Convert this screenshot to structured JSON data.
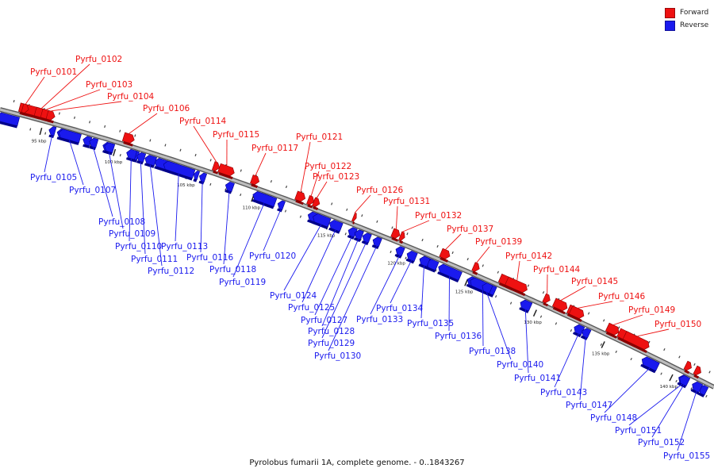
{
  "colors": {
    "forward": "#ee1111",
    "reverse": "#1a1aee",
    "backbone": "#8a8a8a"
  },
  "legend": [
    {
      "label": "Forward",
      "color": "#ee1111"
    },
    {
      "label": "Reverse",
      "color": "#1a1aee"
    }
  ],
  "caption": "Pyrolobus fumarii 1A, complete genome. - 0..1843267",
  "ticks": [
    "95 kbp",
    "100 kbp",
    "105 kbp",
    "110 kbp",
    "115 kbp",
    "120 kbp",
    "125 kbp",
    "130 kbp",
    "135 kbp",
    "140 kbp"
  ],
  "genes": [
    {
      "id": "Pyrfu_0101",
      "strand": "forward"
    },
    {
      "id": "Pyrfu_0102",
      "strand": "forward"
    },
    {
      "id": "Pyrfu_0103",
      "strand": "forward"
    },
    {
      "id": "Pyrfu_0104",
      "strand": "forward"
    },
    {
      "id": "Pyrfu_0105",
      "strand": "reverse"
    },
    {
      "id": "Pyrfu_0106",
      "strand": "forward"
    },
    {
      "id": "Pyrfu_0107",
      "strand": "reverse"
    },
    {
      "id": "Pyrfu_0108",
      "strand": "reverse"
    },
    {
      "id": "Pyrfu_0109",
      "strand": "reverse"
    },
    {
      "id": "Pyrfu_0110",
      "strand": "reverse"
    },
    {
      "id": "Pyrfu_0111",
      "strand": "reverse"
    },
    {
      "id": "Pyrfu_0112",
      "strand": "reverse"
    },
    {
      "id": "Pyrfu_0113",
      "strand": "reverse"
    },
    {
      "id": "Pyrfu_0114",
      "strand": "forward"
    },
    {
      "id": "Pyrfu_0115",
      "strand": "forward"
    },
    {
      "id": "Pyrfu_0116",
      "strand": "reverse"
    },
    {
      "id": "Pyrfu_0117",
      "strand": "forward"
    },
    {
      "id": "Pyrfu_0118",
      "strand": "reverse"
    },
    {
      "id": "Pyrfu_0119",
      "strand": "reverse"
    },
    {
      "id": "Pyrfu_0120",
      "strand": "reverse"
    },
    {
      "id": "Pyrfu_0121",
      "strand": "forward"
    },
    {
      "id": "Pyrfu_0122",
      "strand": "forward"
    },
    {
      "id": "Pyrfu_0123",
      "strand": "forward"
    },
    {
      "id": "Pyrfu_0124",
      "strand": "reverse"
    },
    {
      "id": "Pyrfu_0125",
      "strand": "reverse"
    },
    {
      "id": "Pyrfu_0126",
      "strand": "forward"
    },
    {
      "id": "Pyrfu_0127",
      "strand": "reverse"
    },
    {
      "id": "Pyrfu_0128",
      "strand": "reverse"
    },
    {
      "id": "Pyrfu_0129",
      "strand": "reverse"
    },
    {
      "id": "Pyrfu_0130",
      "strand": "reverse"
    },
    {
      "id": "Pyrfu_0131",
      "strand": "forward"
    },
    {
      "id": "Pyrfu_0132",
      "strand": "forward"
    },
    {
      "id": "Pyrfu_0133",
      "strand": "reverse"
    },
    {
      "id": "Pyrfu_0134",
      "strand": "reverse"
    },
    {
      "id": "Pyrfu_0135",
      "strand": "reverse"
    },
    {
      "id": "Pyrfu_0136",
      "strand": "reverse"
    },
    {
      "id": "Pyrfu_0137",
      "strand": "forward"
    },
    {
      "id": "Pyrfu_0138",
      "strand": "reverse"
    },
    {
      "id": "Pyrfu_0139",
      "strand": "forward"
    },
    {
      "id": "Pyrfu_0140",
      "strand": "reverse"
    },
    {
      "id": "Pyrfu_0141",
      "strand": "reverse"
    },
    {
      "id": "Pyrfu_0142",
      "strand": "forward"
    },
    {
      "id": "Pyrfu_0143",
      "strand": "reverse"
    },
    {
      "id": "Pyrfu_0144",
      "strand": "forward"
    },
    {
      "id": "Pyrfu_0145",
      "strand": "forward"
    },
    {
      "id": "Pyrfu_0146",
      "strand": "forward"
    },
    {
      "id": "Pyrfu_0147",
      "strand": "reverse"
    },
    {
      "id": "Pyrfu_0148",
      "strand": "reverse"
    },
    {
      "id": "Pyrfu_0149",
      "strand": "forward"
    },
    {
      "id": "Pyrfu_0150",
      "strand": "forward"
    },
    {
      "id": "Pyrfu_0151",
      "strand": "reverse"
    },
    {
      "id": "Pyrfu_0152",
      "strand": "reverse"
    },
    {
      "id": "Pyrfu_0155",
      "strand": "reverse"
    }
  ]
}
